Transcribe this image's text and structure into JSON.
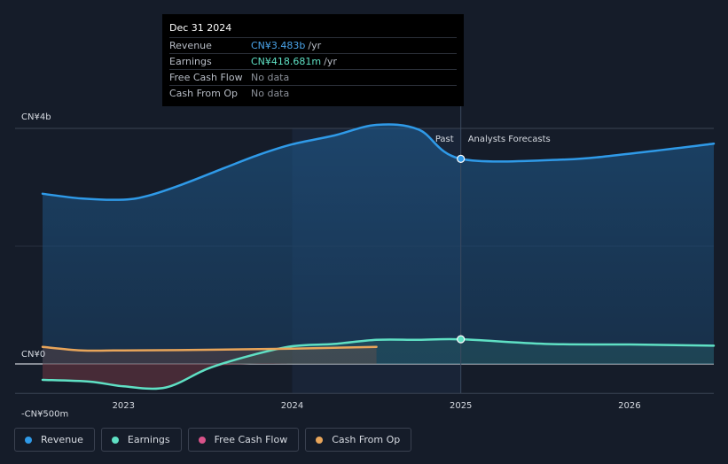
{
  "tooltip": {
    "date": "Dec 31 2024",
    "rows": [
      {
        "label": "Revenue",
        "value": "CN¥3.483b",
        "unit": "/yr",
        "color": "#4aa3e8"
      },
      {
        "label": "Earnings",
        "value": "CN¥418.681m",
        "unit": "/yr",
        "color": "#5fe0c4"
      },
      {
        "label": "Free Cash Flow",
        "value": "No data",
        "unit": "",
        "color": "#7c818a"
      },
      {
        "label": "Cash From Op",
        "value": "No data",
        "unit": "",
        "color": "#7c818a"
      }
    ]
  },
  "markers": {
    "past": "Past",
    "forecast": "Analysts Forecasts"
  },
  "legend": [
    {
      "label": "Revenue",
      "color": "#2f9ae8"
    },
    {
      "label": "Earnings",
      "color": "#5fe0c4"
    },
    {
      "label": "Free Cash Flow",
      "color": "#d9538a"
    },
    {
      "label": "Cash From Op",
      "color": "#e8a55a"
    }
  ],
  "chart_data": {
    "type": "line",
    "y_tick_labels": [
      "CN¥4b",
      "CN¥0",
      "-CN¥500m"
    ],
    "x_tick_labels": [
      "2023",
      "2024",
      "2025",
      "2026"
    ],
    "ylim": [
      -500,
      4000
    ],
    "xlim": [
      2022.52,
      2026.5
    ],
    "divider_x": 2025.0,
    "series": [
      {
        "name": "Revenue",
        "color": "#2f9ae8",
        "x": [
          2022.52,
          2022.75,
          2023.0,
          2023.15,
          2023.35,
          2023.6,
          2023.8,
          2024.0,
          2024.25,
          2024.5,
          2024.75,
          2025.0,
          2025.6,
          2026.0,
          2026.5
        ],
        "y": [
          2890,
          2810,
          2790,
          2860,
          3050,
          3330,
          3550,
          3730,
          3880,
          4060,
          3980,
          3483,
          3470,
          3570,
          3740
        ]
      },
      {
        "name": "Earnings",
        "color": "#5fe0c4",
        "x": [
          2022.52,
          2022.8,
          2023.0,
          2023.25,
          2023.5,
          2023.75,
          2024.0,
          2024.25,
          2024.5,
          2024.75,
          2025.0,
          2025.5,
          2026.0,
          2026.5
        ],
        "y": [
          -270,
          -300,
          -380,
          -400,
          -80,
          140,
          300,
          340,
          410,
          410,
          418.681,
          340,
          330,
          310
        ]
      },
      {
        "name": "Cash From Op",
        "color": "#e8a55a",
        "x": [
          2022.52,
          2022.75,
          2023.0,
          2023.5,
          2024.0,
          2024.5
        ],
        "y": [
          290,
          230,
          230,
          240,
          260,
          290
        ]
      }
    ]
  }
}
